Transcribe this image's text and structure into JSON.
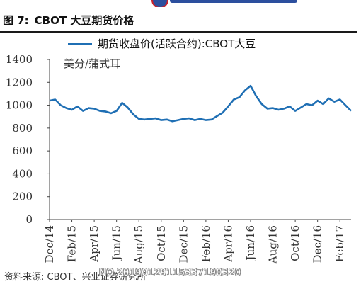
{
  "header": {
    "figure_number": "图 7:",
    "title": "CBOT 大豆期货价格"
  },
  "footer": {
    "source": "资料来源: CBOT、兴业证券研究所",
    "watermark": "NO.20190129115337190320"
  },
  "chart_data": {
    "type": "line",
    "legend_label": "期货收盘价(活跃合约):CBOT大豆",
    "unit_label": "美分/蒲式耳",
    "ylim": [
      0,
      1400
    ],
    "yticks": [
      "0",
      "200",
      "400",
      "600",
      "800",
      "1000",
      "1200",
      "1400"
    ],
    "xtick_labels": [
      "Dec/14",
      "Feb/15",
      "Apr/15",
      "Jun/15",
      "Aug/15",
      "Oct/15",
      "Dec/15",
      "Feb/16",
      "Apr/16",
      "Jun/16",
      "Aug/16",
      "Oct/16",
      "Dec/16",
      "Feb/17"
    ],
    "x_range": [
      "Dec/14",
      "Mar/17"
    ],
    "grid": false,
    "legend_position": "top",
    "color": "#1f6fb4",
    "series": [
      {
        "name": "期货收盘价(活跃合约):CBOT大豆",
        "x": [
          0,
          0.5,
          1,
          1.5,
          2,
          2.5,
          3,
          3.5,
          4,
          4.5,
          5,
          5.5,
          6,
          6.5,
          7,
          7.5,
          8,
          8.5,
          9,
          9.5,
          10,
          10.5,
          11,
          11.5,
          12,
          12.5,
          13,
          13.5,
          14,
          14.5,
          15,
          15.5,
          16,
          16.5,
          17,
          17.5,
          18,
          18.5,
          19,
          19.5,
          20,
          20.5,
          21,
          21.5,
          22,
          22.5,
          23,
          23.5,
          24,
          24.5,
          25,
          25.5,
          26,
          26.5,
          27
        ],
        "y": [
          1040,
          1050,
          1000,
          975,
          960,
          990,
          950,
          975,
          970,
          950,
          945,
          930,
          950,
          1020,
          980,
          920,
          880,
          875,
          880,
          885,
          870,
          875,
          860,
          870,
          880,
          885,
          870,
          880,
          870,
          875,
          905,
          935,
          990,
          1050,
          1070,
          1130,
          1170,
          1080,
          1010,
          970,
          975,
          960,
          970,
          990,
          950,
          980,
          1010,
          1000,
          1040,
          1010,
          1060,
          1030,
          1050,
          1000,
          950
        ]
      }
    ]
  }
}
